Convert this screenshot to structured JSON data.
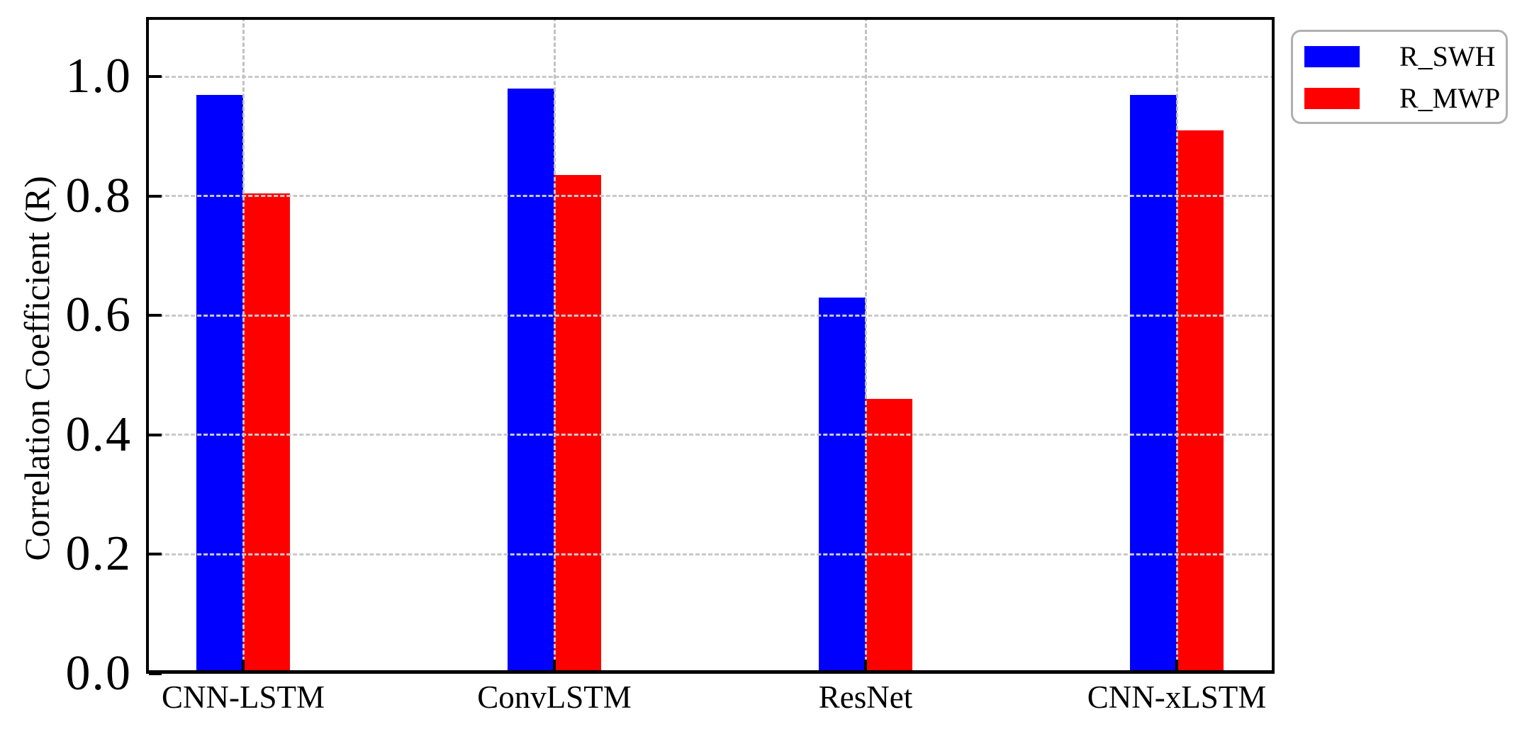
{
  "chart_data": {
    "type": "bar",
    "title": "",
    "categories": [
      "CNN-LSTM",
      "ConvLSTM",
      "ResNet",
      "CNN-xLSTM"
    ],
    "series": [
      {
        "name": "R_SWH",
        "color": "#0000ff",
        "values": [
          0.97,
          0.98,
          0.63,
          0.97
        ]
      },
      {
        "name": "R_MWP",
        "color": "#ff0000",
        "values": [
          0.805,
          0.835,
          0.46,
          0.91
        ]
      }
    ],
    "xlabel": "",
    "ylabel": "Correlation Coefficient (R)",
    "ylim": [
      0.0,
      1.1
    ],
    "yticks": [
      0.0,
      0.2,
      0.4,
      0.6,
      0.8,
      1.0
    ],
    "ytick_labels": [
      "0.0",
      "0.2",
      "0.4",
      "0.6",
      "0.8",
      "1.0"
    ],
    "grid": {
      "style": "dashed",
      "color": "#c9c9c9",
      "horizontal_at": [
        0.2,
        0.4,
        0.6,
        0.8,
        1.0
      ],
      "vertical_at_category_centers": true,
      "drawn_above_bars": true
    },
    "legend": {
      "position": "outside-upper-right",
      "entries": [
        "R_SWH",
        "R_MWP"
      ],
      "border_color": "#b0b0b0",
      "background": "#ffffff"
    },
    "axes": {
      "spine_color": "#000000",
      "tick_direction": "in",
      "ticks_on": [
        "left",
        "bottom"
      ]
    }
  },
  "figure": {
    "background": "#ffffff"
  }
}
